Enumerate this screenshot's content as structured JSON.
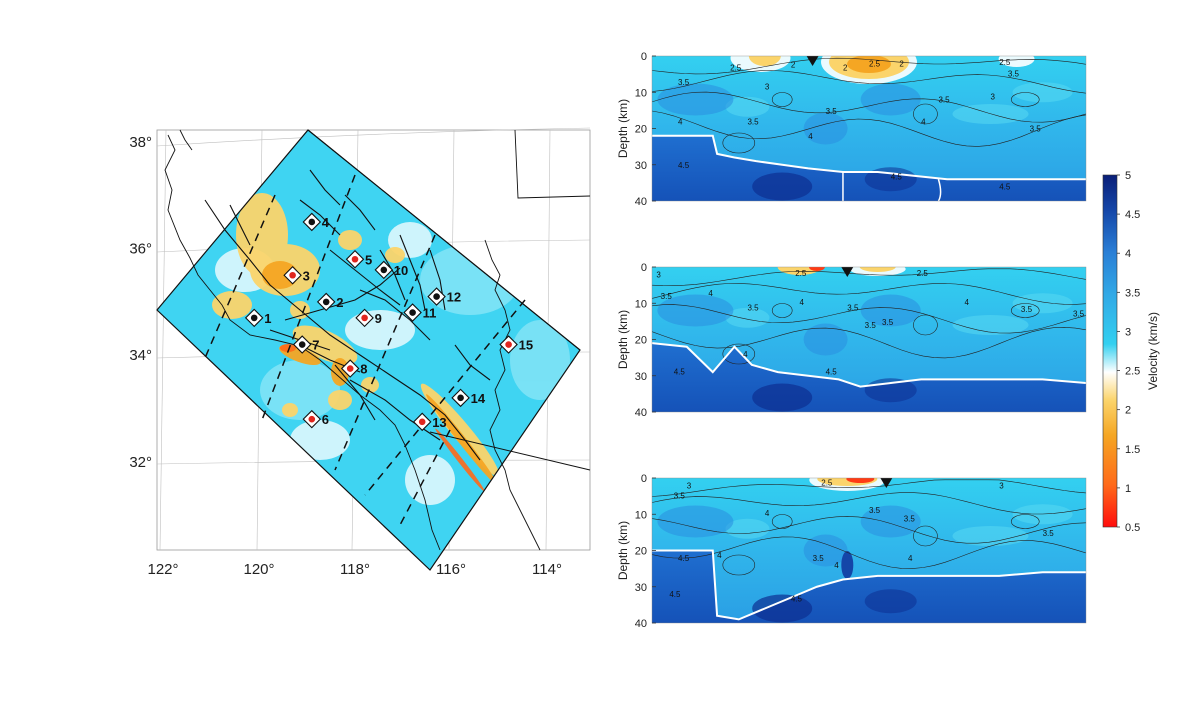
{
  "colors": {
    "background": "#ffffff",
    "colormap": [
      "#ff0d0d",
      "#ff6a1a",
      "#f5a623",
      "#fbd46b",
      "#ffffff",
      "#33d0f0",
      "#31a9e6",
      "#2a7fd6",
      "#1446a8",
      "#0a1f78"
    ],
    "moho_line": "#ffffff",
    "contour_line": "#222222",
    "fault_line": "#111111",
    "boundary_line": "#111111",
    "station_black": "#111111",
    "station_red": "#e0261e"
  },
  "chart_data": [
    {
      "type": "heatmap",
      "panel": "map",
      "xlabel": "",
      "ylabel": "",
      "x_ticks": [
        "122°",
        "120°",
        "118°",
        "116°",
        "114°"
      ],
      "x_tick_values": [
        -122,
        -120,
        -118,
        -116,
        -114
      ],
      "y_ticks": [
        "38°",
        "36°",
        "34°",
        "32°"
      ],
      "y_tick_values": [
        38,
        36,
        34,
        32
      ],
      "xlim": [
        -122.3,
        -112.9
      ],
      "ylim": [
        30.5,
        38.4
      ],
      "grid": true,
      "stations": [
        {
          "label": "1",
          "lon": -120.1,
          "lat": 34.7,
          "marker": "black"
        },
        {
          "label": "2",
          "lon": -118.6,
          "lat": 35.0,
          "marker": "black"
        },
        {
          "label": "3",
          "lon": -119.3,
          "lat": 35.5,
          "marker": "red"
        },
        {
          "label": "4",
          "lon": -118.9,
          "lat": 36.5,
          "marker": "black"
        },
        {
          "label": "5",
          "lon": -118.0,
          "lat": 35.8,
          "marker": "red"
        },
        {
          "label": "6",
          "lon": -118.9,
          "lat": 32.8,
          "marker": "red"
        },
        {
          "label": "7",
          "lon": -119.1,
          "lat": 34.2,
          "marker": "black"
        },
        {
          "label": "8",
          "lon": -118.1,
          "lat": 33.75,
          "marker": "red"
        },
        {
          "label": "9",
          "lon": -117.8,
          "lat": 34.7,
          "marker": "red"
        },
        {
          "label": "10",
          "lon": -117.4,
          "lat": 35.6,
          "marker": "black"
        },
        {
          "label": "11",
          "lon": -116.8,
          "lat": 34.8,
          "marker": "black"
        },
        {
          "label": "12",
          "lon": -116.3,
          "lat": 35.1,
          "marker": "black"
        },
        {
          "label": "13",
          "lon": -116.6,
          "lat": 32.75,
          "marker": "red"
        },
        {
          "label": "14",
          "lon": -115.8,
          "lat": 33.2,
          "marker": "black"
        },
        {
          "label": "15",
          "lon": -114.8,
          "lat": 34.2,
          "marker": "red"
        }
      ]
    },
    {
      "type": "heatmap",
      "panel": "cross-section-1",
      "ylabel": "Depth (km)",
      "y_ticks": [
        "0",
        "10",
        "20",
        "30",
        "40"
      ],
      "ylim": [
        40,
        0
      ],
      "moho_depth_profile": [
        [
          0,
          22
        ],
        [
          0.14,
          22
        ],
        [
          0.15,
          27
        ],
        [
          0.19,
          28
        ],
        [
          0.24,
          29
        ],
        [
          0.3,
          30
        ],
        [
          0.36,
          31
        ],
        [
          0.44,
          32
        ],
        [
          0.52,
          32
        ],
        [
          0.6,
          33
        ],
        [
          0.68,
          34
        ],
        [
          0.75,
          34
        ],
        [
          0.82,
          34
        ],
        [
          0.9,
          34
        ],
        [
          1.0,
          34
        ]
      ],
      "station_marker_position": 0.37,
      "contour_labels": [
        "2.5",
        "2",
        "2",
        "3",
        "2.5",
        "2",
        "2.5",
        "3.5",
        "3",
        "3.5",
        "4",
        "3.5",
        "4",
        "3.5",
        "4",
        "3.5",
        "3.5",
        "4.5",
        "4.5",
        "4.5"
      ]
    },
    {
      "type": "heatmap",
      "panel": "cross-section-2",
      "ylabel": "Depth (km)",
      "y_ticks": [
        "0",
        "10",
        "20",
        "30",
        "40"
      ],
      "ylim": [
        40,
        0
      ],
      "moho_depth_profile": [
        [
          0,
          21
        ],
        [
          0.08,
          22
        ],
        [
          0.14,
          29
        ],
        [
          0.19,
          22
        ],
        [
          0.23,
          27
        ],
        [
          0.29,
          29
        ],
        [
          0.36,
          30
        ],
        [
          0.43,
          31
        ],
        [
          0.48,
          33
        ],
        [
          0.55,
          32
        ],
        [
          0.62,
          31
        ],
        [
          0.7,
          31
        ],
        [
          0.8,
          31
        ],
        [
          0.9,
          31
        ],
        [
          1.0,
          32
        ]
      ],
      "station_marker_position": 0.45,
      "contour_labels": [
        "3",
        "2.5",
        "2.5",
        "3.5",
        "4",
        "3.5",
        "4",
        "3.5",
        "3.5",
        "4",
        "3.5",
        "3.5",
        "3.5",
        "4",
        "4.5",
        "4.5"
      ]
    },
    {
      "type": "heatmap",
      "panel": "cross-section-3",
      "ylabel": "Depth (km)",
      "y_ticks": [
        "0",
        "10",
        "20",
        "30",
        "40"
      ],
      "ylim": [
        40,
        0
      ],
      "moho_depth_profile": [
        [
          0,
          20
        ],
        [
          0.14,
          20
        ],
        [
          0.15,
          38
        ],
        [
          0.2,
          39
        ],
        [
          0.26,
          36
        ],
        [
          0.32,
          33
        ],
        [
          0.38,
          30
        ],
        [
          0.44,
          28
        ],
        [
          0.52,
          27
        ],
        [
          0.6,
          27
        ],
        [
          0.7,
          27
        ],
        [
          0.8,
          27
        ],
        [
          0.9,
          26
        ],
        [
          1.0,
          26
        ]
      ],
      "station_marker_position": 0.54,
      "contour_labels": [
        "3",
        "2.5",
        "3",
        "3.5",
        "4",
        "3.5",
        "3.5",
        "3.5",
        "4",
        "3.5",
        "4",
        "4.5",
        "4.5",
        "4.5",
        "4"
      ]
    },
    {
      "type": "colorbar",
      "label": "Velocity (km/s)",
      "ticks": [
        "5",
        "4.5",
        "4",
        "3.5",
        "3",
        "2.5",
        "2",
        "1.5",
        "1",
        "0.5"
      ],
      "tick_values": [
        5,
        4.5,
        4,
        3.5,
        3,
        2.5,
        2,
        1.5,
        1,
        0.5
      ],
      "range": [
        0.5,
        5
      ]
    }
  ]
}
